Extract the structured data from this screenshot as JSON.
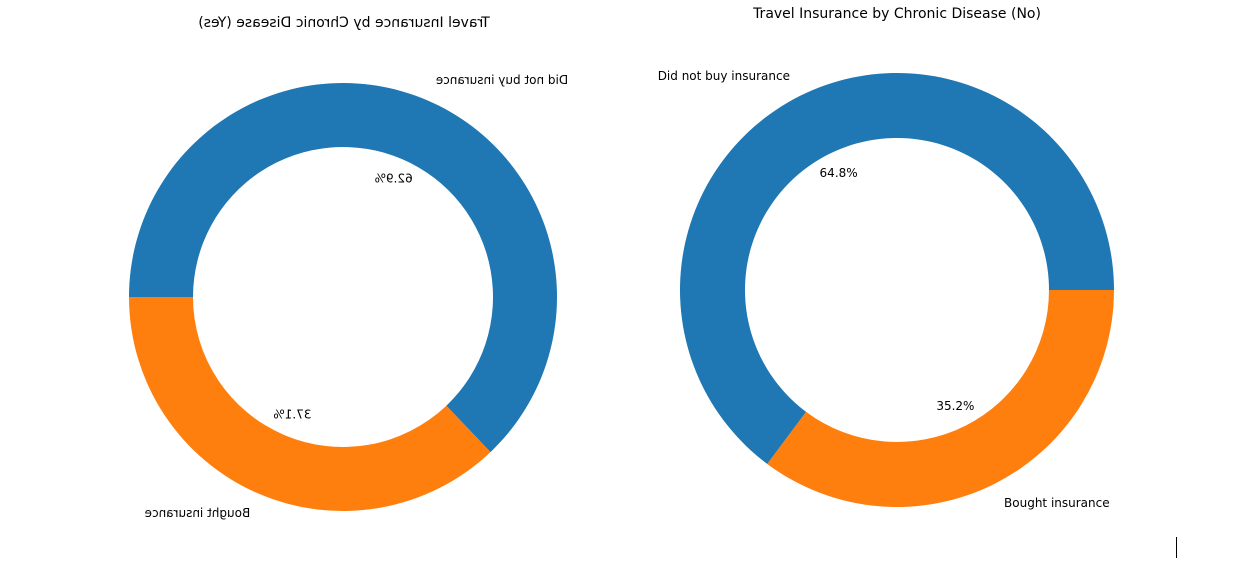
{
  "chart_data": [
    {
      "type": "pie",
      "donut": true,
      "mirrored": true,
      "title": "Travel Insurance by Chronic Disease (Yes)",
      "labels": [
        "Did not buy insurance",
        "Bought insurance"
      ],
      "values": [
        62.9,
        37.1
      ],
      "autopct": [
        "62.9%",
        "37.1%"
      ],
      "colors": [
        "#1f77b4",
        "#ff7f0e"
      ]
    },
    {
      "type": "pie",
      "donut": true,
      "mirrored": false,
      "title": "Travel Insurance by Chronic Disease (No)",
      "labels": [
        "Did not buy insurance",
        "Bought insurance"
      ],
      "values": [
        64.8,
        35.2
      ],
      "autopct": [
        "64.8%",
        "35.2%"
      ],
      "colors": [
        "#1f77b4",
        "#ff7f0e"
      ]
    }
  ]
}
